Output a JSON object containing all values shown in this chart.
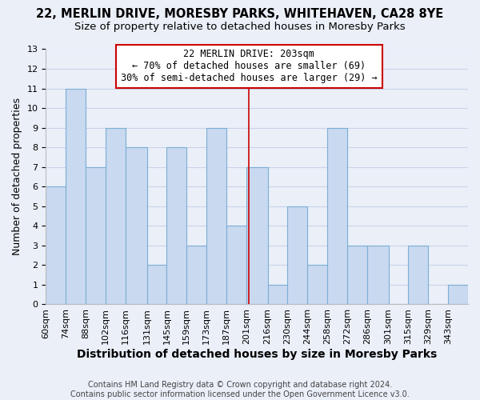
{
  "title": "22, MERLIN DRIVE, MORESBY PARKS, WHITEHAVEN, CA28 8YE",
  "subtitle": "Size of property relative to detached houses in Moresby Parks",
  "xlabel": "Distribution of detached houses by size in Moresby Parks",
  "ylabel": "Number of detached properties",
  "bin_edges": [
    60,
    74,
    88,
    102,
    116,
    131,
    145,
    159,
    173,
    187,
    201,
    216,
    230,
    244,
    258,
    272,
    286,
    301,
    315,
    329,
    343,
    357
  ],
  "bin_labels": [
    "60sqm",
    "74sqm",
    "88sqm",
    "102sqm",
    "116sqm",
    "131sqm",
    "145sqm",
    "159sqm",
    "173sqm",
    "187sqm",
    "201sqm",
    "216sqm",
    "230sqm",
    "244sqm",
    "258sqm",
    "272sqm",
    "286sqm",
    "301sqm",
    "315sqm",
    "329sqm",
    "343sqm"
  ],
  "counts": [
    6,
    11,
    7,
    9,
    8,
    2,
    8,
    3,
    9,
    4,
    7,
    1,
    5,
    2,
    9,
    3,
    3,
    0,
    3,
    0,
    1
  ],
  "bar_color": "#c9d9f0",
  "bar_edge_color": "#7bafd4",
  "bar_linewidth": 0.8,
  "property_size": 203,
  "redline_color": "#cc0000",
  "annotation_title": "22 MERLIN DRIVE: 203sqm",
  "annotation_line1": "← 70% of detached houses are smaller (69)",
  "annotation_line2": "30% of semi-detached houses are larger (29) →",
  "annotation_box_color": "#ffffff",
  "annotation_box_edge": "#cc0000",
  "ylim": [
    0,
    13
  ],
  "yticks": [
    0,
    1,
    2,
    3,
    4,
    5,
    6,
    7,
    8,
    9,
    10,
    11,
    12,
    13
  ],
  "grid_color": "#c8d4e8",
  "background_color": "#eaeff8",
  "footer1": "Contains HM Land Registry data © Crown copyright and database right 2024.",
  "footer2": "Contains public sector information licensed under the Open Government Licence v3.0.",
  "title_fontsize": 10.5,
  "subtitle_fontsize": 9.5,
  "xlabel_fontsize": 10,
  "ylabel_fontsize": 9,
  "tick_fontsize": 8,
  "footer_fontsize": 7,
  "annotation_fontsize": 8.5
}
